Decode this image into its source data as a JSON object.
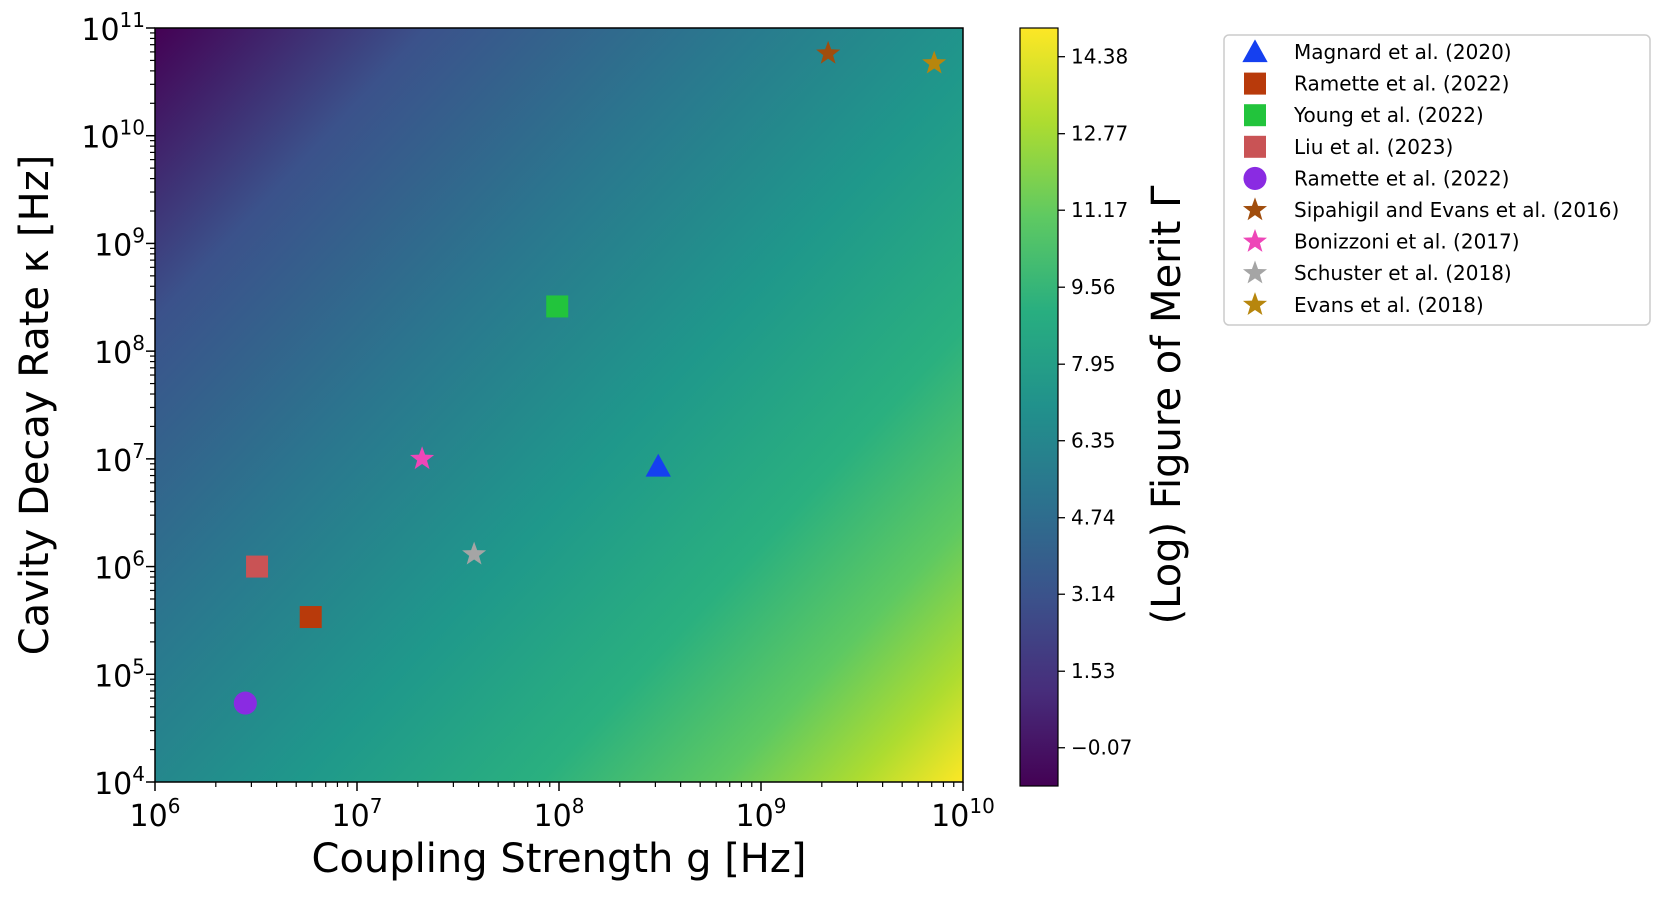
{
  "chart_data": {
    "type": "heatmap",
    "title": "",
    "xlabel": "Coupling Strength g [Hz]",
    "ylabel": "Cavity Decay Rate κ [Hz]",
    "x_scale": "log",
    "y_scale": "log",
    "xlim": [
      1000000,
      10000000000
    ],
    "ylim": [
      10000,
      100000000000
    ],
    "x_ticks": [
      {
        "base": "10",
        "exp": "6"
      },
      {
        "base": "10",
        "exp": "7"
      },
      {
        "base": "10",
        "exp": "8"
      },
      {
        "base": "10",
        "exp": "9"
      },
      {
        "base": "10",
        "exp": "10"
      }
    ],
    "y_ticks": [
      {
        "base": "10",
        "exp": "4"
      },
      {
        "base": "10",
        "exp": "5"
      },
      {
        "base": "10",
        "exp": "6"
      },
      {
        "base": "10",
        "exp": "7"
      },
      {
        "base": "10",
        "exp": "8"
      },
      {
        "base": "10",
        "exp": "9"
      },
      {
        "base": "10",
        "exp": "10"
      },
      {
        "base": "10",
        "exp": "11"
      }
    ],
    "colormap": "viridis",
    "colorbar": {
      "label": "(Log) Figure of Merit Γ",
      "range": [
        -0.87,
        14.98
      ],
      "ticks": [
        "−0.07",
        "1.53",
        "3.14",
        "4.74",
        "6.35",
        "7.95",
        "9.56",
        "11.17",
        "12.77",
        "14.38"
      ]
    },
    "legend_position": "outside-right",
    "grid": false,
    "series": [
      {
        "name": "Magnard et al. (2020)",
        "marker": "triangle",
        "color": "#1540f0",
        "x": 310000000,
        "y": 8500000
      },
      {
        "name": "Ramette et al. (2022)",
        "marker": "square",
        "color": "#b83a0b",
        "x": 5900000,
        "y": 340000
      },
      {
        "name": "Young et al. (2022)",
        "marker": "square",
        "color": "#22c43c",
        "x": 98000000,
        "y": 260000000
      },
      {
        "name": "Liu et al. (2023)",
        "marker": "square",
        "color": "#c95355",
        "x": 3200000,
        "y": 1000000
      },
      {
        "name": "Ramette et al. (2022)",
        "marker": "circle",
        "color": "#8a2be2",
        "x": 2800000,
        "y": 54000
      },
      {
        "name": "Sipahigil and Evans et al. (2016)",
        "marker": "star",
        "color": "#a04d0d",
        "x": 2150000000,
        "y": 58000000000
      },
      {
        "name": "Bonizzoni et al. (2017)",
        "marker": "star",
        "color": "#ee46b8",
        "x": 21000000,
        "y": 10000000
      },
      {
        "name": "Schuster et al. (2018)",
        "marker": "star",
        "color": "#a5a5a5",
        "x": 38000000,
        "y": 1300000
      },
      {
        "name": "Evans et al. (2018)",
        "marker": "star",
        "color": "#b7860d",
        "x": 7200000000,
        "y": 47000000000
      }
    ]
  }
}
